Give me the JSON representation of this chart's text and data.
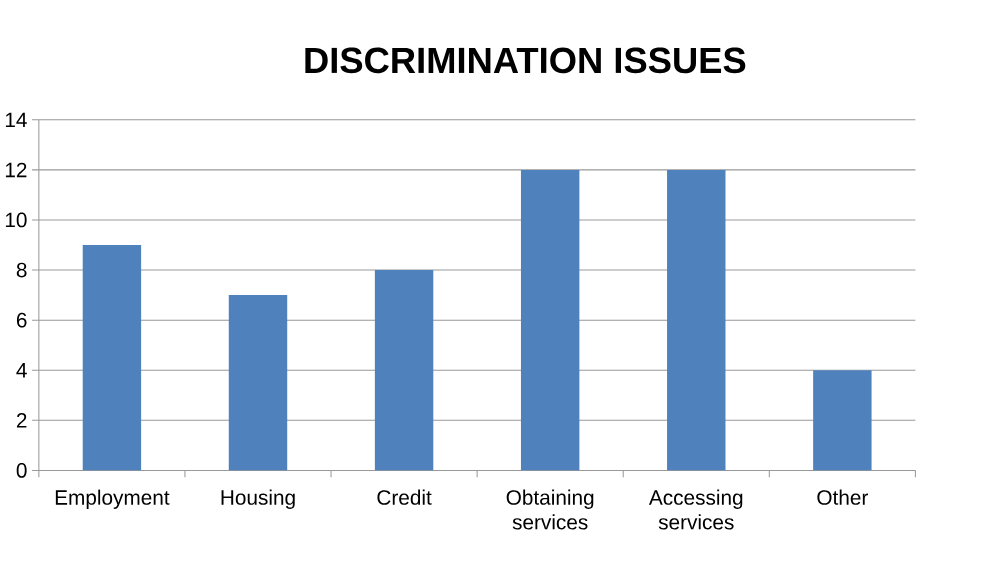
{
  "chart_data": {
    "type": "bar",
    "title": "DISCRIMINATION ISSUES",
    "categories": [
      "Employment",
      "Housing",
      "Credit",
      "Obtaining services",
      "Accessing services",
      "Other"
    ],
    "values": [
      9,
      7,
      8,
      12,
      12,
      4
    ],
    "color": "#4f81bd",
    "ylim": [
      0,
      14
    ],
    "yticks": [
      0,
      2,
      4,
      6,
      8,
      10,
      12,
      14
    ],
    "grid": "y"
  }
}
